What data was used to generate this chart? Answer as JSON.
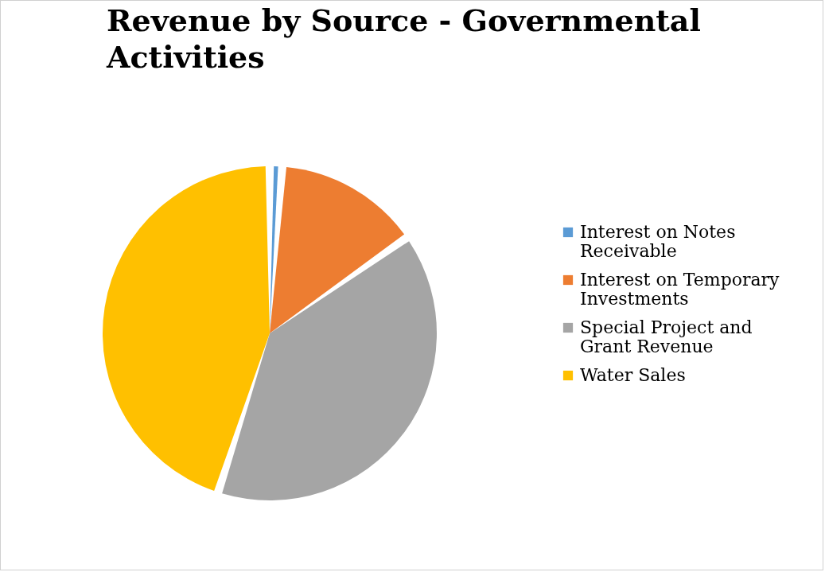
{
  "chart_data": {
    "type": "pie",
    "title": "Revenue by Source - Governmental Activities",
    "categories": [
      "Interest on Notes Receivable",
      "Interest on Temporary Investments",
      "Special Project and Grant Revenue",
      "Water Sales"
    ],
    "values": [
      1.2,
      14.1,
      39.7,
      45.0
    ],
    "colors": [
      "#5b9bd5",
      "#ed7d31",
      "#a5a5a5",
      "#ffc000"
    ],
    "legend": "right"
  }
}
